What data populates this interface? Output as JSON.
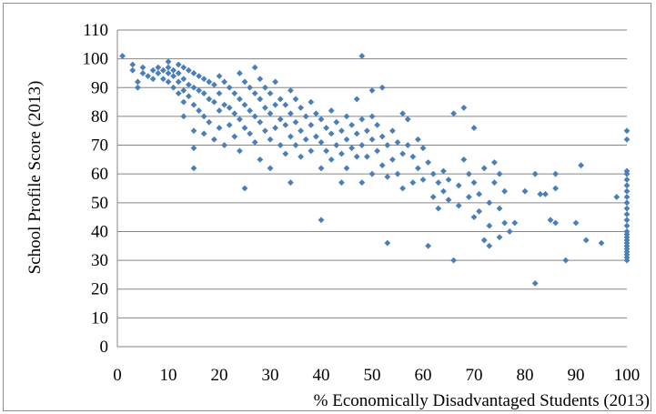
{
  "chart_data": {
    "type": "scatter",
    "title": "",
    "xlabel": "% Economically Disadvantaged Students (2013)",
    "ylabel": "School Profile Score (2013)",
    "xlim": [
      0,
      100
    ],
    "ylim": [
      0,
      110
    ],
    "xticks": [
      "0",
      "10",
      "20",
      "30",
      "40",
      "50",
      "60",
      "70",
      "80",
      "90",
      "100"
    ],
    "yticks": [
      "0",
      "10",
      "20",
      "30",
      "40",
      "50",
      "60",
      "70",
      "80",
      "90",
      "100",
      "110"
    ],
    "grid": "horizontal major gridlines",
    "legend": "none",
    "marker": "diamond",
    "marker_color": "#4a7ebb",
    "gridline_color": "#868686",
    "series": [
      {
        "points": [
          [
            1,
            101
          ],
          [
            3,
            98
          ],
          [
            3,
            96
          ],
          [
            4,
            92
          ],
          [
            4,
            90
          ],
          [
            5,
            97
          ],
          [
            5,
            95
          ],
          [
            6,
            94
          ],
          [
            7,
            96
          ],
          [
            7,
            93
          ],
          [
            8,
            97
          ],
          [
            8,
            95
          ],
          [
            9,
            96
          ],
          [
            9,
            93
          ],
          [
            10,
            99
          ],
          [
            10,
            97
          ],
          [
            10,
            95
          ],
          [
            10,
            92
          ],
          [
            11,
            96
          ],
          [
            11,
            94
          ],
          [
            11,
            90
          ],
          [
            12,
            98
          ],
          [
            12,
            95
          ],
          [
            12,
            92
          ],
          [
            12,
            88
          ],
          [
            13,
            97
          ],
          [
            13,
            93
          ],
          [
            13,
            89
          ],
          [
            13,
            85
          ],
          [
            13,
            80
          ],
          [
            14,
            96
          ],
          [
            14,
            91
          ],
          [
            14,
            87
          ],
          [
            15,
            95
          ],
          [
            15,
            90
          ],
          [
            15,
            84
          ],
          [
            15,
            75
          ],
          [
            15,
            69
          ],
          [
            15,
            62
          ],
          [
            16,
            94
          ],
          [
            16,
            89
          ],
          [
            16,
            82
          ],
          [
            17,
            93
          ],
          [
            17,
            88
          ],
          [
            17,
            80
          ],
          [
            17,
            74
          ],
          [
            18,
            92
          ],
          [
            18,
            86
          ],
          [
            18,
            78
          ],
          [
            19,
            91
          ],
          [
            19,
            85
          ],
          [
            19,
            72
          ],
          [
            20,
            94
          ],
          [
            20,
            88
          ],
          [
            20,
            82
          ],
          [
            20,
            76
          ],
          [
            21,
            92
          ],
          [
            21,
            84
          ],
          [
            21,
            70
          ],
          [
            22,
            90
          ],
          [
            22,
            83
          ],
          [
            22,
            77
          ],
          [
            23,
            88
          ],
          [
            23,
            81
          ],
          [
            23,
            73
          ],
          [
            24,
            95
          ],
          [
            24,
            86
          ],
          [
            24,
            79
          ],
          [
            24,
            68
          ],
          [
            25,
            92
          ],
          [
            25,
            84
          ],
          [
            25,
            76
          ],
          [
            25,
            55
          ],
          [
            26,
            90
          ],
          [
            26,
            82
          ],
          [
            26,
            74
          ],
          [
            27,
            97
          ],
          [
            27,
            88
          ],
          [
            27,
            80
          ],
          [
            27,
            71
          ],
          [
            28,
            93
          ],
          [
            28,
            86
          ],
          [
            28,
            78
          ],
          [
            28,
            65
          ],
          [
            29,
            90
          ],
          [
            29,
            83
          ],
          [
            29,
            75
          ],
          [
            30,
            88
          ],
          [
            30,
            81
          ],
          [
            30,
            72
          ],
          [
            30,
            62
          ],
          [
            31,
            92
          ],
          [
            31,
            84
          ],
          [
            31,
            76
          ],
          [
            32,
            86
          ],
          [
            32,
            79
          ],
          [
            32,
            70
          ],
          [
            33,
            84
          ],
          [
            33,
            77
          ],
          [
            33,
            67
          ],
          [
            34,
            89
          ],
          [
            34,
            81
          ],
          [
            34,
            73
          ],
          [
            34,
            57
          ],
          [
            35,
            86
          ],
          [
            35,
            78
          ],
          [
            35,
            70
          ],
          [
            36,
            83
          ],
          [
            36,
            75
          ],
          [
            36,
            66
          ],
          [
            37,
            80
          ],
          [
            37,
            72
          ],
          [
            38,
            85
          ],
          [
            38,
            77
          ],
          [
            38,
            68
          ],
          [
            39,
            81
          ],
          [
            39,
            73
          ],
          [
            40,
            79
          ],
          [
            40,
            71
          ],
          [
            40,
            62
          ],
          [
            40,
            44
          ],
          [
            41,
            76
          ],
          [
            41,
            68
          ],
          [
            42,
            82
          ],
          [
            42,
            74
          ],
          [
            42,
            65
          ],
          [
            43,
            78
          ],
          [
            43,
            70
          ],
          [
            44,
            75
          ],
          [
            44,
            67
          ],
          [
            44,
            57
          ],
          [
            45,
            80
          ],
          [
            45,
            72
          ],
          [
            45,
            62
          ],
          [
            46,
            77
          ],
          [
            46,
            69
          ],
          [
            47,
            86
          ],
          [
            47,
            74
          ],
          [
            47,
            66
          ],
          [
            48,
            101
          ],
          [
            48,
            79
          ],
          [
            48,
            70
          ],
          [
            48,
            57
          ],
          [
            49,
            75
          ],
          [
            49,
            66
          ],
          [
            50,
            89
          ],
          [
            50,
            80
          ],
          [
            50,
            72
          ],
          [
            50,
            60
          ],
          [
            51,
            77
          ],
          [
            51,
            68
          ],
          [
            52,
            90
          ],
          [
            52,
            73
          ],
          [
            52,
            63
          ],
          [
            53,
            70
          ],
          [
            53,
            59
          ],
          [
            53,
            36
          ],
          [
            54,
            75
          ],
          [
            54,
            65
          ],
          [
            55,
            71
          ],
          [
            55,
            60
          ],
          [
            56,
            81
          ],
          [
            56,
            67
          ],
          [
            56,
            55
          ],
          [
            57,
            79
          ],
          [
            57,
            70
          ],
          [
            58,
            66
          ],
          [
            58,
            57
          ],
          [
            59,
            72
          ],
          [
            59,
            62
          ],
          [
            60,
            69
          ],
          [
            60,
            58
          ],
          [
            61,
            35
          ],
          [
            61,
            64
          ],
          [
            62,
            60
          ],
          [
            62,
            52
          ],
          [
            63,
            57
          ],
          [
            63,
            48
          ],
          [
            64,
            61
          ],
          [
            64,
            54
          ],
          [
            65,
            58
          ],
          [
            65,
            51
          ],
          [
            66,
            81
          ],
          [
            66,
            30
          ],
          [
            67,
            56
          ],
          [
            67,
            49
          ],
          [
            68,
            83
          ],
          [
            68,
            65
          ],
          [
            69,
            60
          ],
          [
            69,
            52
          ],
          [
            70,
            76
          ],
          [
            70,
            57
          ],
          [
            70,
            45
          ],
          [
            71,
            53
          ],
          [
            71,
            47
          ],
          [
            72,
            62
          ],
          [
            72,
            37
          ],
          [
            73,
            50
          ],
          [
            73,
            42
          ],
          [
            73,
            35
          ],
          [
            74,
            64
          ],
          [
            74,
            57
          ],
          [
            75,
            60
          ],
          [
            75,
            48
          ],
          [
            75,
            38
          ],
          [
            76,
            54
          ],
          [
            76,
            43
          ],
          [
            77,
            40
          ],
          [
            78,
            43
          ],
          [
            80,
            54
          ],
          [
            82,
            60
          ],
          [
            82,
            22
          ],
          [
            83,
            53
          ],
          [
            84,
            53
          ],
          [
            85,
            44
          ],
          [
            86,
            43
          ],
          [
            86,
            60
          ],
          [
            86,
            55
          ],
          [
            88,
            30
          ],
          [
            90,
            43
          ],
          [
            91,
            63
          ],
          [
            92,
            37
          ],
          [
            95,
            36
          ],
          [
            98,
            52
          ],
          [
            100,
            75
          ],
          [
            100,
            72
          ],
          [
            100,
            61
          ],
          [
            100,
            60
          ],
          [
            100,
            58
          ],
          [
            100,
            56
          ],
          [
            100,
            54
          ],
          [
            100,
            52
          ],
          [
            100,
            50
          ],
          [
            100,
            48
          ],
          [
            100,
            46
          ],
          [
            100,
            44
          ],
          [
            100,
            42
          ],
          [
            100,
            40
          ],
          [
            100,
            39
          ],
          [
            100,
            38
          ],
          [
            100,
            37
          ],
          [
            100,
            36
          ],
          [
            100,
            35
          ],
          [
            100,
            34
          ],
          [
            100,
            33
          ],
          [
            100,
            32
          ],
          [
            100,
            31
          ],
          [
            100,
            30
          ]
        ]
      }
    ]
  }
}
